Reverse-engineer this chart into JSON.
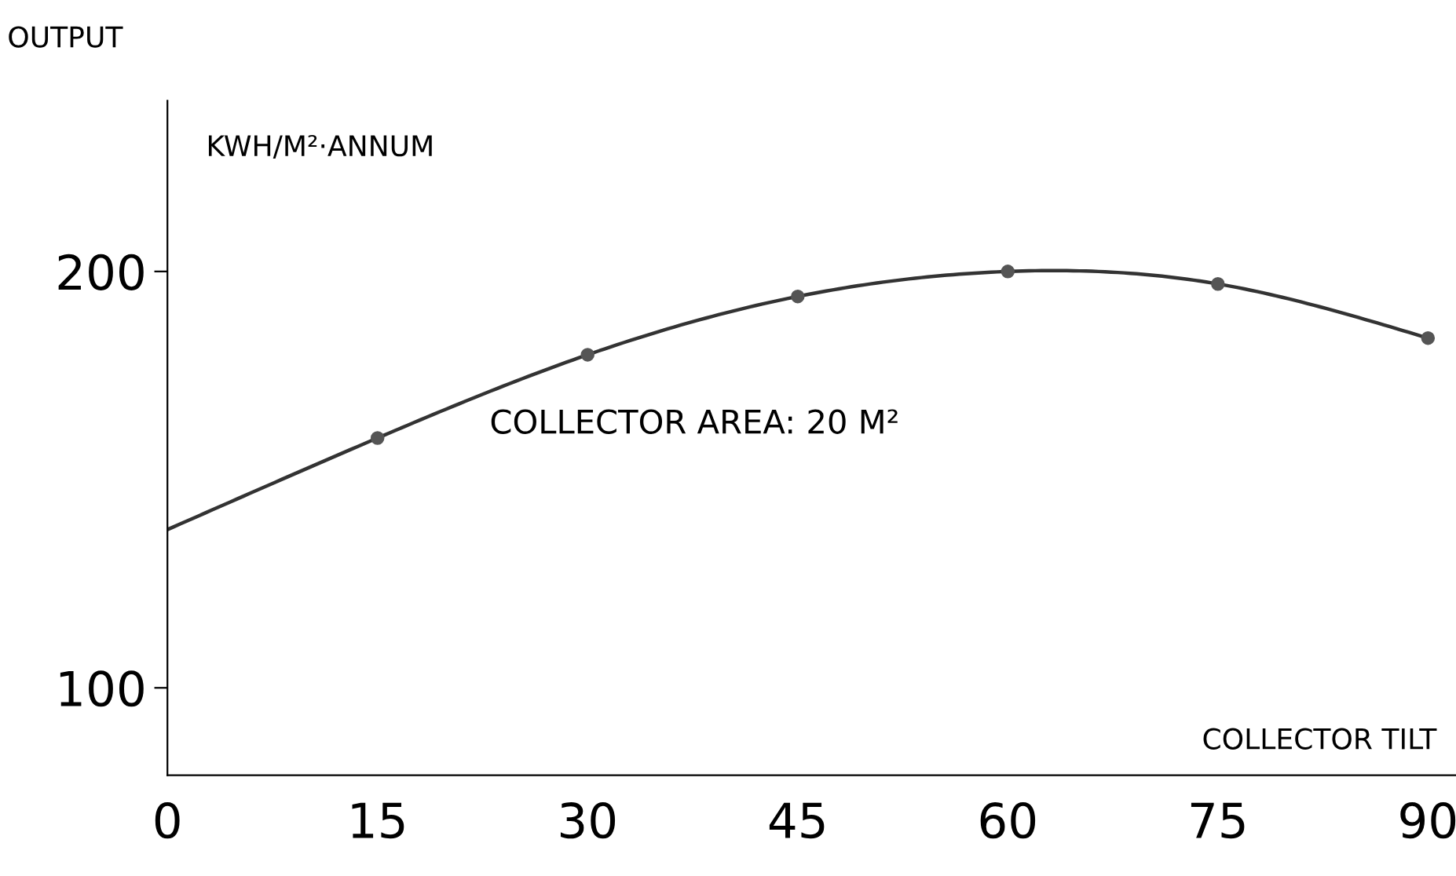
{
  "chart_data": {
    "type": "line",
    "ylabel": "OUTPUT",
    "xlabel": "COLLECTOR TILT",
    "annotations": [
      "KWH/M²·ANNUM",
      "COLLECTOR AREA: 20 M²"
    ],
    "series": [
      {
        "color": "#333333",
        "marker": "none",
        "x": [
          0,
          15,
          30,
          45,
          60,
          75,
          90
        ],
        "values": [
          138,
          160,
          180,
          194,
          200,
          197,
          184
        ]
      },
      {
        "type": "scatter",
        "color": "#555555",
        "marker": "circle",
        "x": [
          15,
          30,
          45,
          60,
          75,
          90
        ],
        "values": [
          160,
          180,
          194,
          200,
          197,
          184
        ]
      }
    ],
    "xlim": [
      0,
      92
    ],
    "ylim": [
      79,
      241
    ],
    "xticks": [
      0,
      15,
      30,
      45,
      60,
      75,
      90
    ],
    "yticks": [
      100,
      200
    ],
    "grid": false,
    "legend": false
  }
}
